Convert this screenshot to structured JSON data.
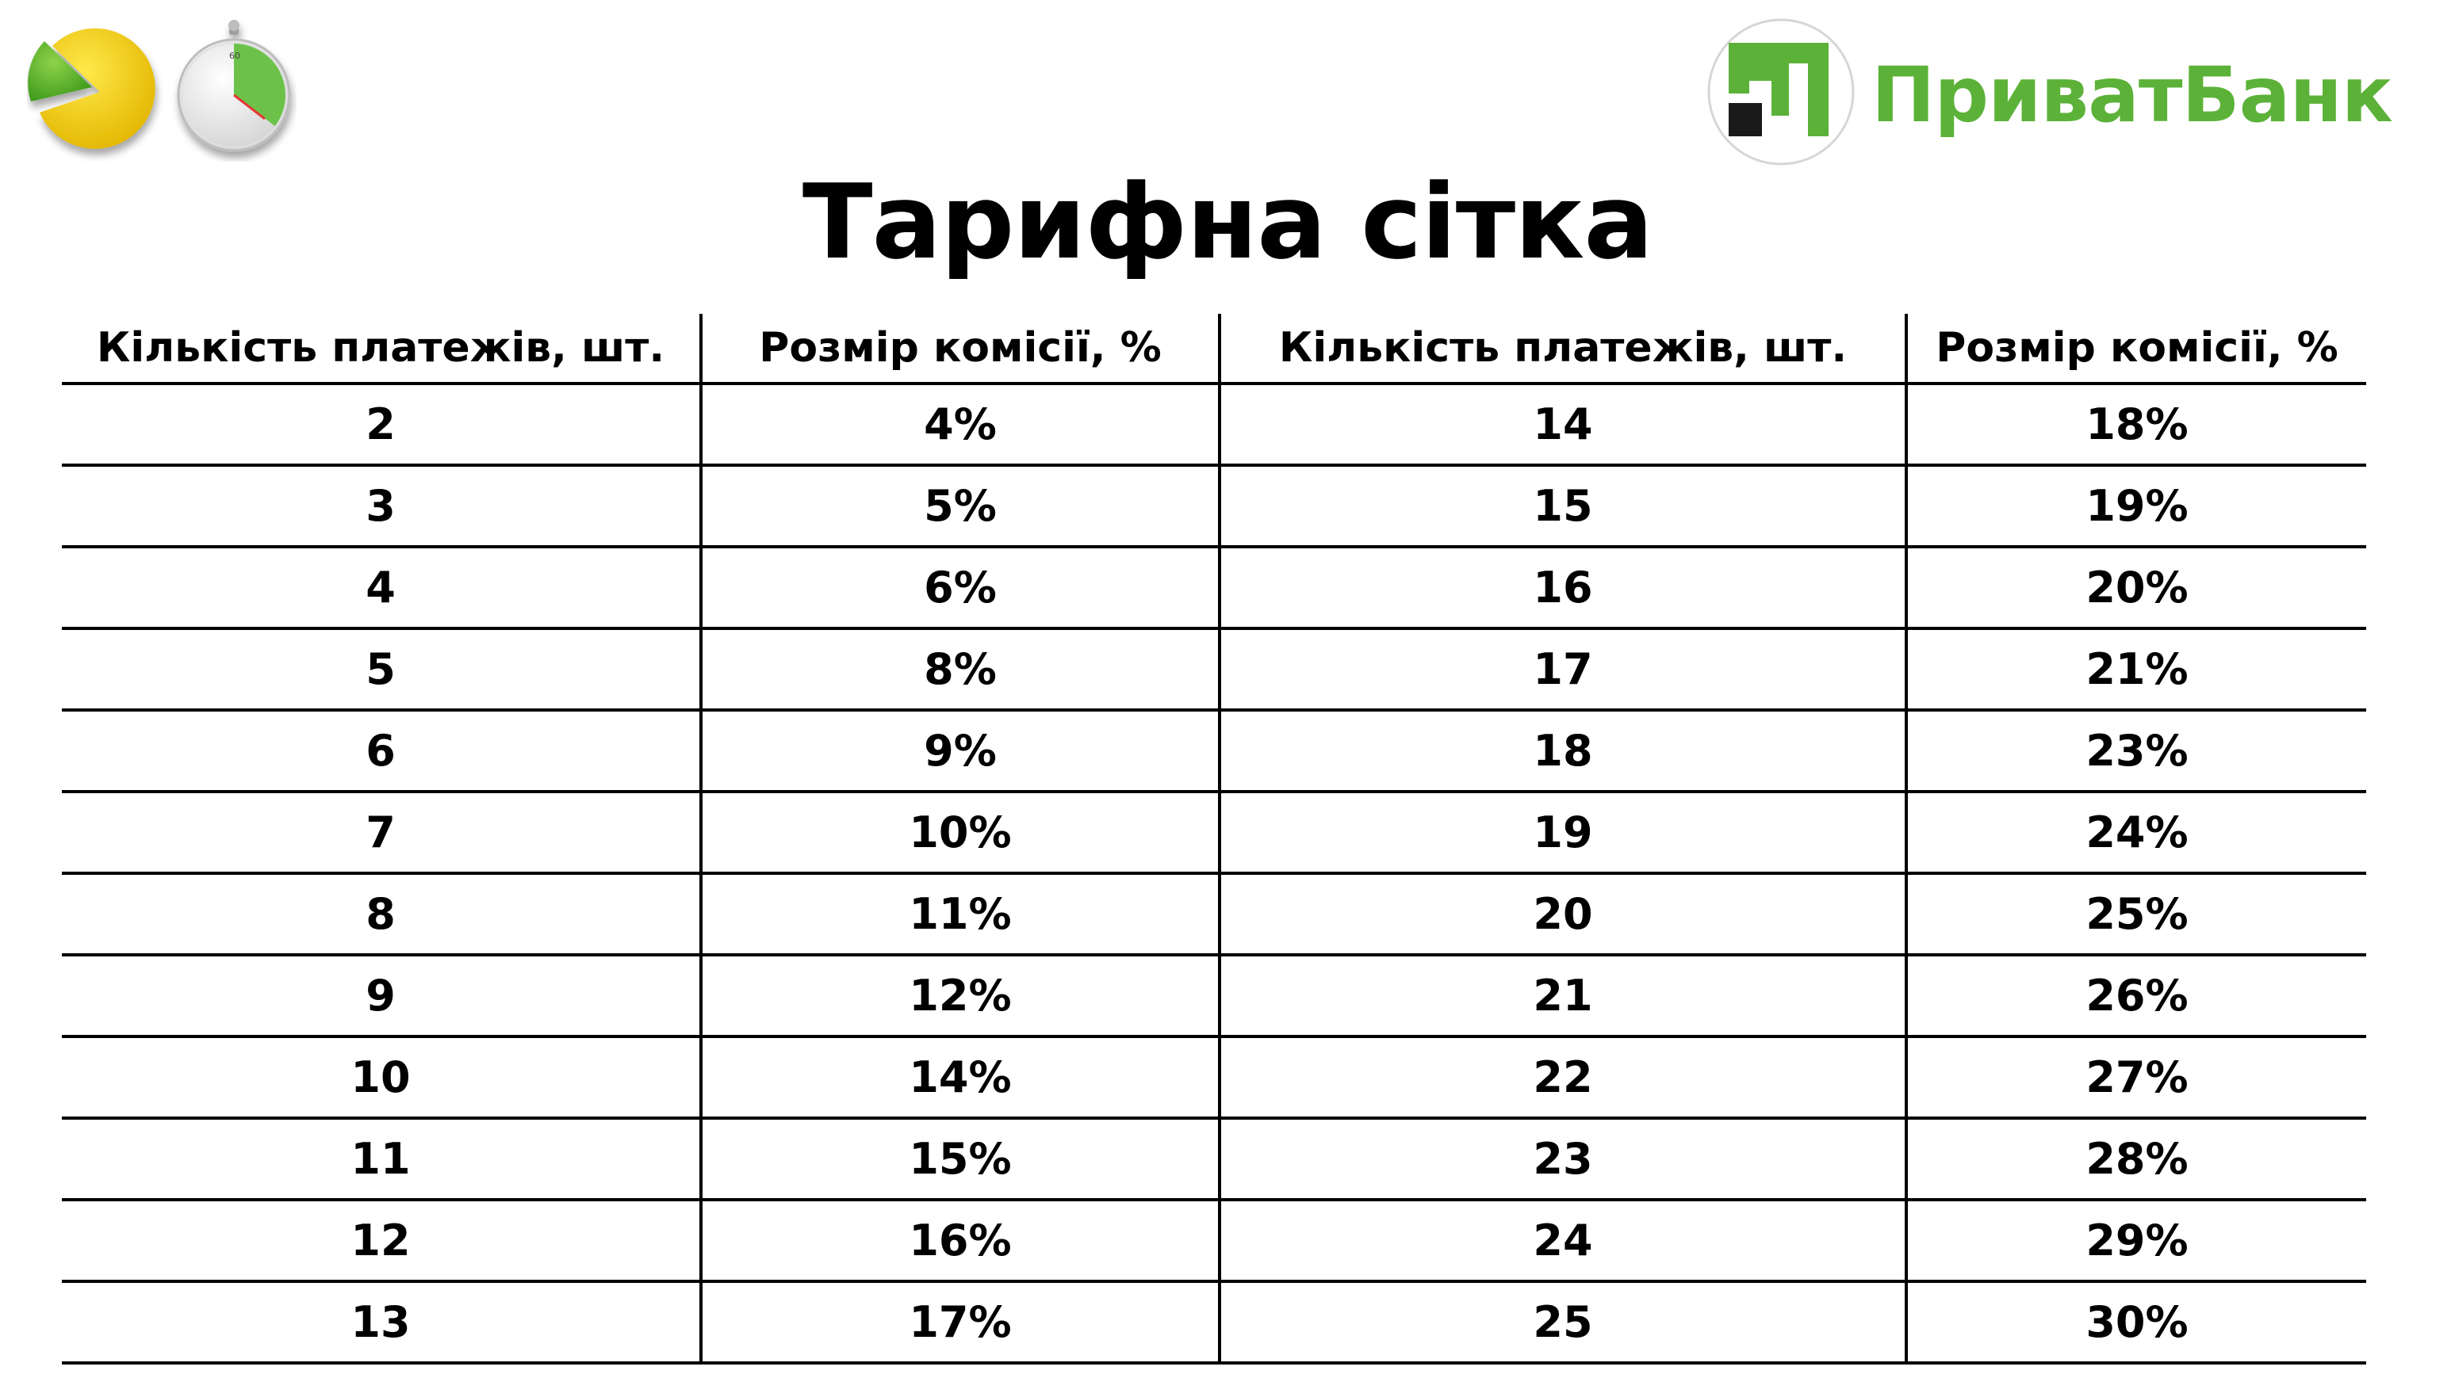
{
  "brand": {
    "name": "ПриватБанк",
    "color_green": "#5cb238",
    "color_dark": "#1a1a1a"
  },
  "decoration": {
    "left_icons": [
      "pie-chart-icon",
      "stopwatch-icon"
    ]
  },
  "page": {
    "title": "Тарифна сітка"
  },
  "table": {
    "headers": [
      "Кількість платежів, шт.",
      "Розмір комісії, %",
      "Кількість платежів, шт.",
      "Розмір комісії, %"
    ],
    "rows": [
      [
        "2",
        "4%",
        "14",
        "18%"
      ],
      [
        "3",
        "5%",
        "15",
        "19%"
      ],
      [
        "4",
        "6%",
        "16",
        "20%"
      ],
      [
        "5",
        "8%",
        "17",
        "21%"
      ],
      [
        "6",
        "9%",
        "18",
        "23%"
      ],
      [
        "7",
        "10%",
        "19",
        "24%"
      ],
      [
        "8",
        "11%",
        "20",
        "25%"
      ],
      [
        "9",
        "12%",
        "21",
        "26%"
      ],
      [
        "10",
        "14%",
        "22",
        "27%"
      ],
      [
        "11",
        "15%",
        "23",
        "28%"
      ],
      [
        "12",
        "16%",
        "24",
        "29%"
      ],
      [
        "13",
        "17%",
        "25",
        "30%"
      ]
    ]
  }
}
